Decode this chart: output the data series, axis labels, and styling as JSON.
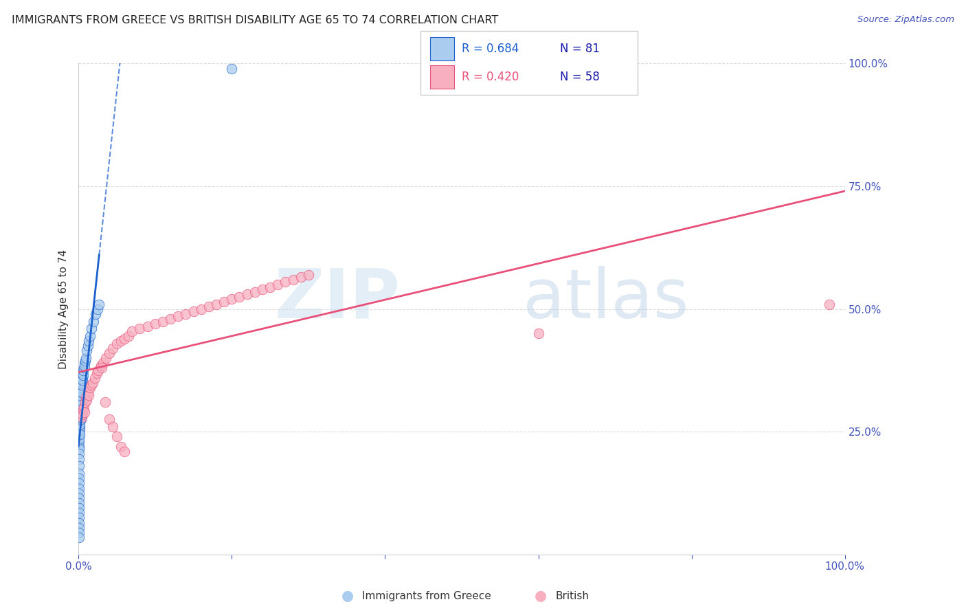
{
  "title": "IMMIGRANTS FROM GREECE VS BRITISH DISABILITY AGE 65 TO 74 CORRELATION CHART",
  "source": "Source: ZipAtlas.com",
  "ylabel": "Disability Age 65 to 74",
  "legend_r1": "R = 0.684",
  "legend_n1": "N = 81",
  "legend_r2": "R = 0.420",
  "legend_n2": "N = 58",
  "series1_color": "#aaccee",
  "series2_color": "#f8b0c0",
  "line1_color": "#1a5fcc",
  "line2_color": "#e8507a",
  "watermark_zip_color": "#c8dff0",
  "watermark_atlas_color": "#b8cce4",
  "background_color": "#ffffff",
  "grid_color": "#dddddd",
  "title_color": "#222222",
  "axis_label_color": "#4455bb",
  "greek_x": [
    0.001,
    0.001,
    0.001,
    0.001,
    0.001,
    0.001,
    0.001,
    0.001,
    0.001,
    0.001,
    0.001,
    0.001,
    0.001,
    0.001,
    0.001,
    0.001,
    0.001,
    0.001,
    0.001,
    0.001,
    0.002,
    0.002,
    0.002,
    0.002,
    0.002,
    0.002,
    0.002,
    0.002,
    0.002,
    0.002,
    0.002,
    0.002,
    0.002,
    0.002,
    0.002,
    0.003,
    0.003,
    0.003,
    0.003,
    0.003,
    0.003,
    0.003,
    0.004,
    0.004,
    0.004,
    0.004,
    0.005,
    0.005,
    0.005,
    0.006,
    0.006,
    0.007,
    0.008,
    0.008,
    0.009,
    0.01,
    0.011,
    0.012,
    0.013,
    0.015,
    0.017,
    0.02,
    0.022,
    0.025,
    0.027,
    0.001,
    0.001,
    0.001,
    0.001,
    0.001,
    0.001,
    0.001,
    0.001,
    0.001,
    0.001,
    0.001,
    0.001,
    0.001,
    0.001,
    0.001,
    0.2
  ],
  "greek_y": [
    0.27,
    0.265,
    0.28,
    0.26,
    0.255,
    0.285,
    0.24,
    0.275,
    0.25,
    0.295,
    0.23,
    0.245,
    0.3,
    0.22,
    0.235,
    0.29,
    0.31,
    0.215,
    0.205,
    0.195,
    0.3,
    0.285,
    0.27,
    0.26,
    0.315,
    0.295,
    0.28,
    0.255,
    0.31,
    0.275,
    0.265,
    0.325,
    0.245,
    0.305,
    0.285,
    0.33,
    0.315,
    0.305,
    0.295,
    0.34,
    0.275,
    0.28,
    0.35,
    0.355,
    0.33,
    0.345,
    0.36,
    0.355,
    0.37,
    0.365,
    0.375,
    0.38,
    0.39,
    0.385,
    0.395,
    0.4,
    0.415,
    0.425,
    0.435,
    0.445,
    0.46,
    0.475,
    0.49,
    0.5,
    0.51,
    0.18,
    0.165,
    0.155,
    0.145,
    0.135,
    0.125,
    0.115,
    0.105,
    0.095,
    0.085,
    0.075,
    0.065,
    0.055,
    0.045,
    0.035,
    0.99
  ],
  "british_x": [
    0.004,
    0.005,
    0.006,
    0.007,
    0.008,
    0.009,
    0.01,
    0.011,
    0.012,
    0.013,
    0.015,
    0.017,
    0.019,
    0.021,
    0.024,
    0.026,
    0.029,
    0.032,
    0.036,
    0.04,
    0.045,
    0.05,
    0.055,
    0.06,
    0.065,
    0.07,
    0.08,
    0.09,
    0.1,
    0.11,
    0.12,
    0.13,
    0.14,
    0.15,
    0.16,
    0.17,
    0.18,
    0.19,
    0.2,
    0.21,
    0.22,
    0.23,
    0.24,
    0.25,
    0.26,
    0.27,
    0.28,
    0.29,
    0.3,
    0.03,
    0.035,
    0.04,
    0.045,
    0.05,
    0.055,
    0.06,
    0.98,
    0.6
  ],
  "british_y": [
    0.28,
    0.285,
    0.295,
    0.3,
    0.29,
    0.31,
    0.32,
    0.315,
    0.33,
    0.325,
    0.34,
    0.345,
    0.35,
    0.36,
    0.37,
    0.375,
    0.385,
    0.39,
    0.4,
    0.41,
    0.42,
    0.43,
    0.435,
    0.44,
    0.445,
    0.455,
    0.46,
    0.465,
    0.47,
    0.475,
    0.48,
    0.485,
    0.49,
    0.495,
    0.5,
    0.505,
    0.51,
    0.515,
    0.52,
    0.525,
    0.53,
    0.535,
    0.54,
    0.545,
    0.55,
    0.555,
    0.56,
    0.565,
    0.57,
    0.38,
    0.31,
    0.275,
    0.26,
    0.24,
    0.22,
    0.21,
    0.51,
    0.45
  ],
  "xlim": [
    0.0,
    1.0
  ],
  "ylim": [
    0.0,
    1.0
  ],
  "xticks": [
    0.0,
    0.2,
    0.4,
    0.6,
    0.8,
    1.0
  ],
  "xtick_labels": [
    "0.0%",
    "",
    "",
    "",
    "",
    "100.0%"
  ],
  "yticks_right": [
    0.25,
    0.5,
    0.75,
    1.0
  ],
  "ytick_labels_right": [
    "25.0%",
    "50.0%",
    "75.0%",
    "100.0%"
  ]
}
